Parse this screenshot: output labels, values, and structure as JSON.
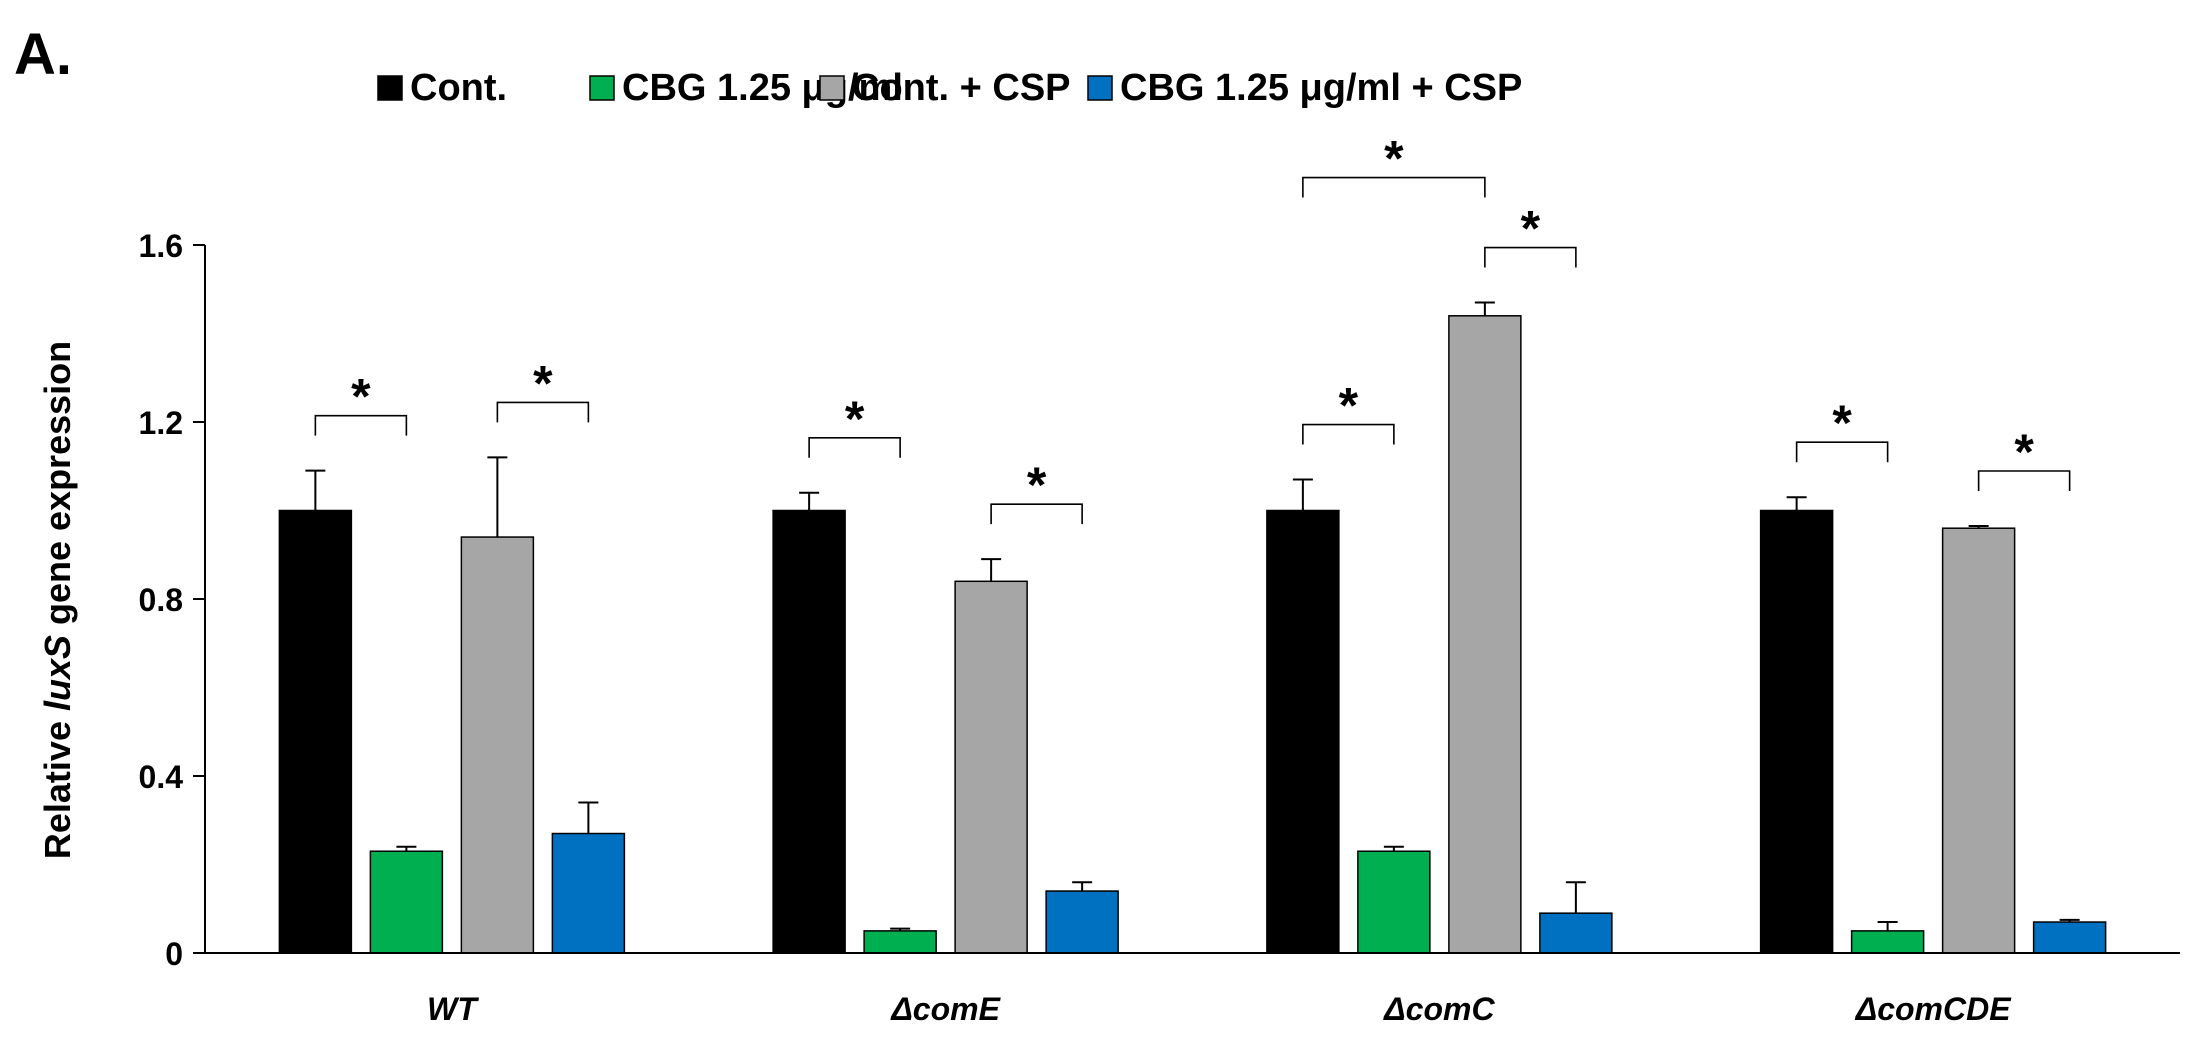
{
  "chart_data": {
    "type": "bar",
    "panel_label": "A.",
    "title": "",
    "xlabel": "",
    "ylabel": {
      "prefix": "Relative ",
      "gene": "luxS",
      "suffix": " gene expression"
    },
    "ylim": [
      0,
      1.6
    ],
    "yticks": [
      "0",
      "0.4",
      "0.8",
      "1.2",
      "1.6"
    ],
    "grid": false,
    "legend_position": "top",
    "categories": [
      "WT",
      "ΔcomE",
      "ΔcomC",
      "ΔcomCDE"
    ],
    "series": [
      {
        "name": "Cont.",
        "color": "#000000",
        "values": [
          1.0,
          1.0,
          1.0,
          1.0
        ],
        "errors": [
          0.09,
          0.04,
          0.07,
          0.03
        ]
      },
      {
        "name": "CBG 1.25 μg/ml",
        "color": "#00b050",
        "values": [
          0.23,
          0.05,
          0.23,
          0.05
        ],
        "errors": [
          0.01,
          0.005,
          0.01,
          0.02
        ]
      },
      {
        "name": "Cont. + CSP",
        "color": "#a6a6a6",
        "values": [
          0.94,
          0.84,
          1.44,
          0.96
        ],
        "errors": [
          0.18,
          0.05,
          0.03,
          0.005
        ]
      },
      {
        "name": "CBG 1.25 μg/ml + CSP",
        "color": "#0070c0",
        "values": [
          0.27,
          0.14,
          0.09,
          0.07
        ],
        "errors": [
          0.07,
          0.02,
          0.07,
          0.005
        ]
      }
    ],
    "significance": [
      {
        "category": 0,
        "from_series": 0,
        "to_series": 1,
        "label": "*"
      },
      {
        "category": 0,
        "from_series": 2,
        "to_series": 3,
        "label": "*"
      },
      {
        "category": 1,
        "from_series": 0,
        "to_series": 1,
        "label": "*"
      },
      {
        "category": 1,
        "from_series": 2,
        "to_series": 3,
        "label": "*"
      },
      {
        "category": 2,
        "from_series": 0,
        "to_series": 1,
        "label": "*"
      },
      {
        "category": 2,
        "from_series": 0,
        "to_series": 2,
        "label": "*"
      },
      {
        "category": 2,
        "from_series": 2,
        "to_series": 3,
        "label": "*"
      },
      {
        "category": 3,
        "from_series": 0,
        "to_series": 1,
        "label": "*"
      },
      {
        "category": 3,
        "from_series": 2,
        "to_series": 3,
        "label": "*"
      }
    ]
  }
}
